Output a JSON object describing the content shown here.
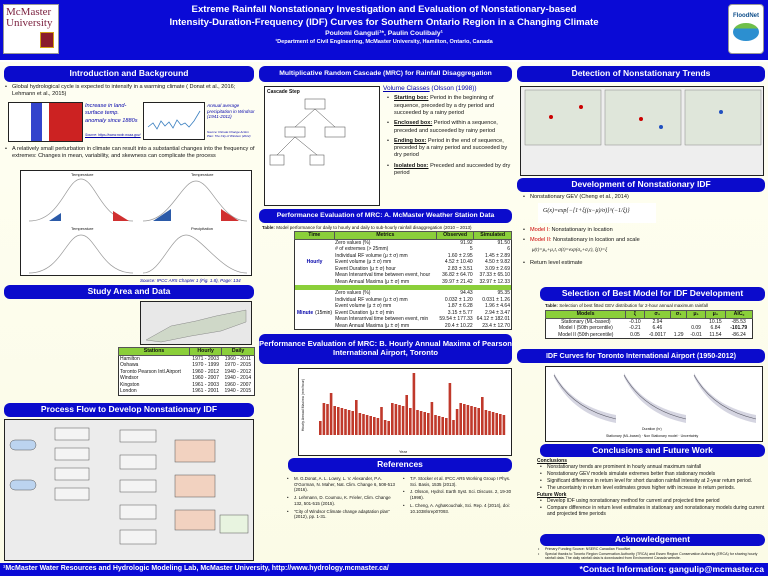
{
  "header": {
    "title_line1": "Extreme Rainfall Nonstationary Investigation and Evaluation of Nonstationary-based",
    "title_line2": "Intensity-Duration-Frequency (IDF) Curves for Southern Ontario Region in a Changing Climate",
    "authors": "Poulomi Ganguli¹*, Paulin Coulibaly¹",
    "affiliation": "¹Department of Civil Engineering, McMaster University, Hamilton, Ontario, Canada",
    "left_logo": "McMaster University",
    "right_logo": "FloodNet"
  },
  "intro": {
    "heading": "Introduction and Background",
    "bullet1": "Global hydrological cycle is expected to intensify in a warming climate ( Donat et al., 2016; Lehmann et al., 2015)",
    "fig1_caption": "Increase in land-surface temp. anomaly since 1880s",
    "fig1_source": "Source: https://www.ncdc.noaa.gov/",
    "fig2_caption": "Annual average precipitation in Windsor (1941-2011)",
    "fig2_source": "Source: Climate Change Action Plan: The City of Windsor (2012)",
    "bullet2": "A relatively small perturbation in climate can result into a substantial changes into the frequency of extremes: Changes in mean, variability, and skewness can complicate the process",
    "bell_labels": [
      "Temperature",
      "Temperature",
      "Temperature",
      "Precipitation"
    ],
    "bell_source": "Source: IPCC AR5 Chapter 1 (Fig. 1.8), Page: 134"
  },
  "study": {
    "heading": "Study Area and Data",
    "columns": [
      "Stations",
      "Hourly",
      "Daily"
    ],
    "rows": [
      [
        "Hamilton",
        "1971 - 2003",
        "1960 - 2011"
      ],
      [
        "Oshawa",
        "1970 - 1999",
        "1970 - 2015"
      ],
      [
        "Toronto Pearson Intl.Airport",
        "1960 - 2012",
        "1940 - 2012"
      ],
      [
        "Windsor",
        "1960 - 2007",
        "1940 - 2014"
      ],
      [
        "Kingston",
        "1961 - 2003",
        "1960 - 2007"
      ],
      [
        "London",
        "1961 - 2001",
        "1940 - 2015"
      ]
    ]
  },
  "process": {
    "heading": "Process Flow to Develop Nonstationary IDF"
  },
  "mrc": {
    "heading": "Multiplicative Random Cascade (MRC) for Rainfall Disaggregation",
    "fig_title": "Cascade Step",
    "volume_classes_title": "Volume Classes",
    "volume_classes_ref": "(Olsson (1998))",
    "boxes": [
      {
        "term": "Starting box:",
        "desc": "Period in the beginning of sequence, preceded by a dry period and succeeded by a rainy period"
      },
      {
        "term": "Enclosed box:",
        "desc": "Period within a sequence, preceded and succeeded by rainy period"
      },
      {
        "term": "Ending box:",
        "desc": "Period in the end of sequence, preceded by a rainy period and succeeded by dry period"
      },
      {
        "term": "Isolated box:",
        "desc": "Preceded and succeeded by dry period"
      }
    ]
  },
  "perfA": {
    "heading": "Performance Evaluation of MRC: A. McMaster Weather Station Data",
    "caption_bold": "Table:",
    "caption": "Model performance for daily to hourly and daily to sub-hourly rainfall disaggregation (2010 – 2013)",
    "columns": [
      "Time",
      "Metrics",
      "Observed",
      "Simulated"
    ],
    "hourly_label": "Hourly",
    "hourly": [
      [
        "Zero values (%)",
        "91.92",
        "91.50"
      ],
      [
        "# of extremes (> 25mm)",
        "5",
        "6"
      ],
      [
        "Individual RF volume (μ ± σ) mm",
        "1.60 ± 2.95",
        "1.45 ± 2.89"
      ],
      [
        "Event volume (μ ± σ) mm",
        "4.52 ± 10.40",
        "4.50 ± 9.82"
      ],
      [
        "Event Duration (μ ± σ) hour",
        "2.83 ± 3.51",
        "3.09 ± 2.69"
      ],
      [
        "Mean Interarrival time between event, hour",
        "36.82 ± 64.70",
        "37.33 ± 65.10"
      ],
      [
        "Mean Annual Maxima (μ ± σ) mm",
        "39.97 ± 21.42",
        "32.97 ± 12.33"
      ]
    ],
    "minute_label": "Minute",
    "minute_sub": "(15min)",
    "minute": [
      [
        "Zero values (%)",
        "94.43",
        "95.35"
      ],
      [
        "Individual RF volume (μ ± σ) mm",
        "0.032 ± 1.20",
        "0.031 ± 1.26"
      ],
      [
        "Event volume (μ ± σ) mm",
        "1.87 ± 6.28",
        "1.96 ± 4.64"
      ],
      [
        "Event Duration (μ ± σ) min",
        "3.15 ± 5.77",
        "2.94 ± 3.47"
      ],
      [
        "Mean Interarrival time between event, min",
        "59.54 ± 177.33",
        "64.12 ± 182.01"
      ],
      [
        "Mean Annual Maxima (μ ± σ) mm",
        "20.4 ± 10.22",
        "23.4 ± 12.70"
      ]
    ]
  },
  "perfB": {
    "heading": "Performance Evaluation of MRC: B. Hourly Annual Maxima of Pearson International Airport, Toronto",
    "xlabel": "Year",
    "ylabel": "Hourly Annual Maxima (mm/hour)"
  },
  "refs": {
    "heading": "References",
    "left": [
      "M. G.Donat, A. L. Lowry, L. V. Alexander, P.A. O'Gorman, N. Maher, Nat. Clim. Change 6, 508-513 (2016).",
      "J. Lehmann, D. Coumou, K. Frieler, Clim. Change 132, 501-515 (2015).",
      "\"City of Windsor Climate change adaptation plan\" (2012), pp. 1-31."
    ],
    "right": [
      "T.F. Stocker et al. IPCC AR5 Working Group I Phys. Sci. Basis, 1535 (2013).",
      "J. Olsson, Hydrol. Earth Syst. Sci. Discuss. 2, 19-30 (1998).",
      "L. Cheng, A. AghaKouchak, Sci. Rep. 4 (2014), doi: 10.1038/srep07093."
    ]
  },
  "trends": {
    "heading": "Detection of Nonstationary Trends"
  },
  "devidf": {
    "heading": "Development of Nonstationary IDF",
    "bullet1": "Nonstationary GEV (Cheng et al., 2014)",
    "model1_label": "Model I:",
    "model1": "Nonstationary in location",
    "model2_label": "Model II:",
    "model2": "Nonstationary in location and scale",
    "return_level": "Return level estimate"
  },
  "best": {
    "heading": "Selection of Best Model for IDF Development",
    "caption_bold": "Table:",
    "caption": "Selection of best fitted GEV distribution for 2-hour annual maximum rainfall",
    "columns": [
      "Models",
      "ξ",
      "σ₀",
      "σ₁",
      "μ₁",
      "μ₀",
      "AIC꜀"
    ],
    "rows": [
      [
        "Stationary (ML-based)",
        "-0.10",
        "2.94",
        "",
        "",
        "10.15",
        "-85.53"
      ],
      [
        "Model I (50th percentile)",
        "-0.21",
        "6.46",
        "",
        "0.09",
        "6.84",
        "-101.79"
      ],
      [
        "Model II (50th percentile)",
        "0.05",
        "-0.0017",
        "1.29",
        "-0.01",
        "11.54",
        "-86.24"
      ]
    ]
  },
  "idf": {
    "heading": "IDF Curves for Toronto International Airport (1950-2012)",
    "xlabel": "Duration (hr)",
    "legend": [
      "Stationary (ML-based)",
      "Non Stationary model",
      "Uncertainty"
    ]
  },
  "conclusions": {
    "heading": "Conclusions and Future Work",
    "sub1": "Conclusions",
    "items1": [
      "Nonstationary trends are prominent in hourly annual maximum rainfall",
      "Nonstationary GEV models simulate extremes better than stationary models",
      "Significant difference in return level for short duration rainfall intensity at 2-year return period.",
      "The uncertainty in return level estimates grows higher with increase in return periods."
    ],
    "sub2": "Future Work",
    "items2": [
      "Develop IDF using nonstationary method for current and projected time period",
      "Compare difference in return level estimates in stationary and nonstationary models during current and projected time periods"
    ]
  },
  "ack": {
    "heading": "Acknowledgement",
    "items": [
      "Primary Funding Source: NSERC Canadian FloodNet",
      "Special thanks to Toronto Region Conservation Authority (TRCA) and Essex Region Conservation Authority (ERCA) for sharing hourly rainfall data. The daily rainfall data is downloaded from Environment Canada website."
    ]
  },
  "footer": {
    "left": "¹McMaster Water Resources and Hydrologic Modeling Lab, McMaster University, http://www.hydrology.mcmaster.ca/",
    "right": "*Contact Information: gangulip@mcmaster.ca"
  },
  "colors": {
    "header_blue": "#0a0ad6",
    "table_green": "#8bcf3a",
    "link_blue": "#0000aa"
  }
}
